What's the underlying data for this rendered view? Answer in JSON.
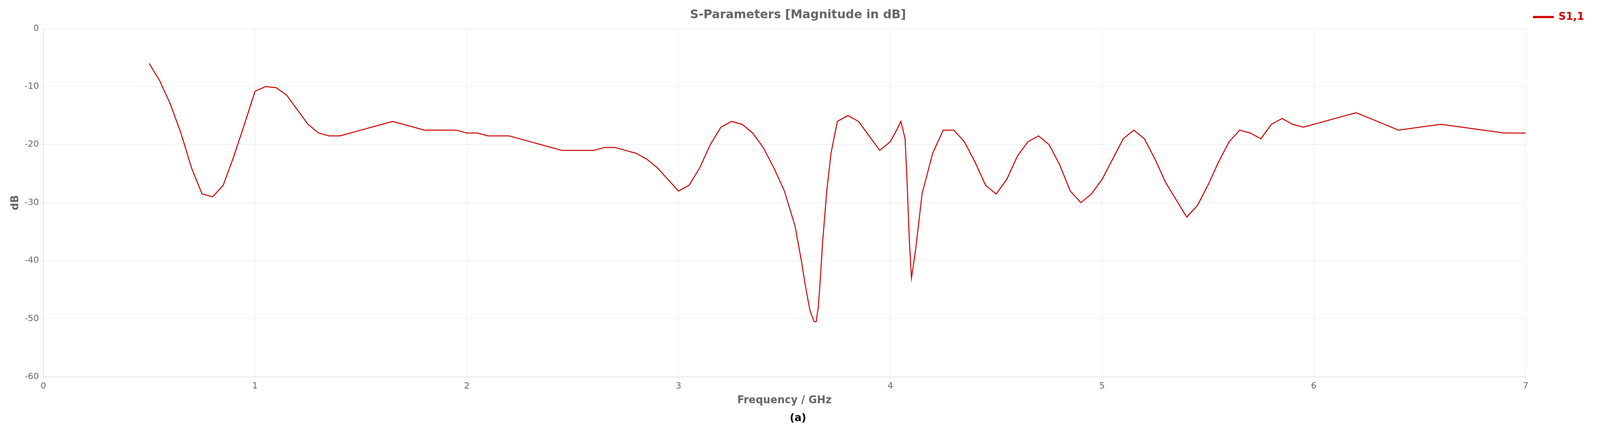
{
  "chart_data": {
    "type": "line",
    "title": "S-Parameters [Magnitude in dB]",
    "subtitle": "(a)",
    "xlabel": "Frequency / GHz",
    "ylabel": "dB",
    "x": [
      0.5,
      0.55,
      0.6,
      0.65,
      0.7,
      0.75,
      0.8,
      0.85,
      0.9,
      0.95,
      1.0,
      1.05,
      1.1,
      1.15,
      1.2,
      1.25,
      1.3,
      1.35,
      1.4,
      1.45,
      1.5,
      1.55,
      1.6,
      1.65,
      1.7,
      1.75,
      1.8,
      1.85,
      1.9,
      1.95,
      2.0,
      2.05,
      2.1,
      2.15,
      2.2,
      2.25,
      2.3,
      2.35,
      2.4,
      2.45,
      2.5,
      2.55,
      2.6,
      2.65,
      2.7,
      2.75,
      2.8,
      2.85,
      2.9,
      2.95,
      3.0,
      3.05,
      3.1,
      3.15,
      3.2,
      3.25,
      3.3,
      3.35,
      3.4,
      3.45,
      3.5,
      3.55,
      3.58,
      3.6,
      3.62,
      3.64,
      3.65,
      3.66,
      3.67,
      3.68,
      3.7,
      3.72,
      3.75,
      3.8,
      3.85,
      3.9,
      3.95,
      4.0,
      4.03,
      4.05,
      4.07,
      4.08,
      4.09,
      4.1,
      4.12,
      4.15,
      4.2,
      4.25,
      4.3,
      4.35,
      4.4,
      4.45,
      4.5,
      4.55,
      4.6,
      4.65,
      4.7,
      4.75,
      4.8,
      4.85,
      4.9,
      4.95,
      5.0,
      5.05,
      5.1,
      5.15,
      5.2,
      5.25,
      5.3,
      5.35,
      5.4,
      5.45,
      5.5,
      5.55,
      5.6,
      5.65,
      5.7,
      5.75,
      5.8,
      5.85,
      5.9,
      5.95,
      6.0,
      6.1,
      6.2,
      6.3,
      6.4,
      6.5,
      6.6,
      6.7,
      6.8,
      6.9,
      7.0
    ],
    "series": [
      {
        "name": "S1,1",
        "color": "#cc0000",
        "values": [
          -6.0,
          -9.0,
          -13.0,
          -18.0,
          -24.0,
          -28.5,
          -29.0,
          -27.0,
          -22.0,
          -16.5,
          -10.8,
          -10.0,
          -10.2,
          -11.5,
          -14.0,
          -16.5,
          -18.0,
          -18.5,
          -18.5,
          -18.0,
          -17.5,
          -17.0,
          -16.5,
          -16.0,
          -16.5,
          -17.0,
          -17.5,
          -17.5,
          -17.5,
          -17.5,
          -18.0,
          -18.0,
          -18.5,
          -18.5,
          -18.5,
          -19.0,
          -19.5,
          -20.0,
          -20.5,
          -21.0,
          -21.0,
          -21.0,
          -21.0,
          -20.5,
          -20.5,
          -21.0,
          -21.5,
          -22.5,
          -24.0,
          -26.0,
          -28.0,
          -27.0,
          -24.0,
          -20.0,
          -17.0,
          -16.0,
          -16.5,
          -18.0,
          -20.5,
          -24.0,
          -28.0,
          -34.0,
          -40.0,
          -44.5,
          -48.5,
          -50.5,
          -50.5,
          -48.0,
          -43.0,
          -37.0,
          -28.0,
          -21.5,
          -16.0,
          -15.0,
          -16.0,
          -18.5,
          -21.0,
          -19.5,
          -17.5,
          -16.0,
          -19.0,
          -27.0,
          -36.5,
          -43.0,
          -38.0,
          -28.5,
          -21.5,
          -17.5,
          -17.5,
          -19.5,
          -23.0,
          -27.0,
          -28.5,
          -26.0,
          -22.0,
          -19.5,
          -18.5,
          -20.0,
          -23.5,
          -28.0,
          -30.0,
          -28.5,
          -26.0,
          -22.5,
          -19.0,
          -17.5,
          -19.0,
          -22.5,
          -26.5,
          -29.5,
          -32.5,
          -30.5,
          -27.0,
          -23.0,
          -19.5,
          -17.5,
          -18.0,
          -19.0,
          -16.5,
          -15.5,
          -16.5,
          -17.0,
          -16.5,
          -15.5,
          -14.5,
          -16.0,
          -17.5,
          -17.0,
          -16.5,
          -17.0,
          -17.5,
          -18.0,
          -18.0
        ]
      }
    ],
    "xlim": [
      0,
      7
    ],
    "xticks": [
      0,
      1,
      2,
      3,
      4,
      5,
      6,
      7
    ],
    "ylim": [
      -60,
      0
    ],
    "yticks": [
      0,
      -10,
      -20,
      -30,
      -40,
      -50,
      -60
    ],
    "grid": true,
    "legend": "right"
  }
}
